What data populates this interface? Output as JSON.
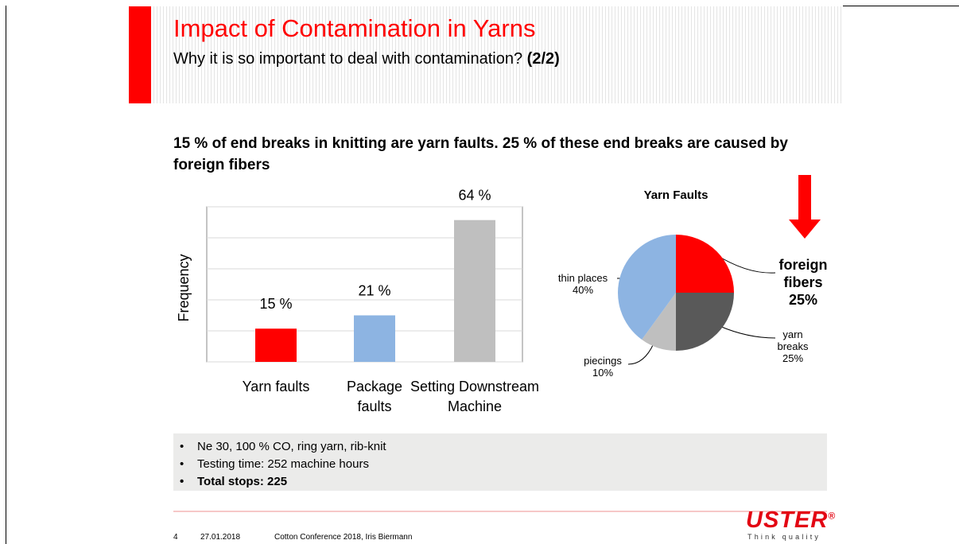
{
  "header": {
    "title": "Impact of Contamination in Yarns",
    "subtitle": "Why it is so important to deal with contamination?",
    "subtitle_bold": "(2/2)"
  },
  "headline": "15 % of end breaks in knitting are yarn faults. 25 % of these end breaks are caused by foreign fibers",
  "chart_data": [
    {
      "type": "bar",
      "ylabel": "Frequency",
      "categories": [
        "Yarn faults",
        "Package faults",
        "Setting Downstream Machine"
      ],
      "values": [
        15,
        21,
        64
      ],
      "value_labels": [
        "15 %",
        "21 %",
        "64 %"
      ],
      "colors": [
        "#ff0000",
        "#8db4e2",
        "#bfbfbf"
      ],
      "ylim": [
        0,
        70
      ],
      "yticks": [
        0,
        14,
        28,
        42,
        56,
        70
      ],
      "grid": true
    },
    {
      "type": "pie",
      "title": "Yarn Faults",
      "categories": [
        "foreign fibers",
        "yarn breaks",
        "piecings",
        "thin places"
      ],
      "values": [
        25,
        25,
        10,
        40
      ],
      "value_labels": [
        "25%",
        "25%",
        "10%",
        "40%"
      ],
      "colors": [
        "#ff0000",
        "#595959",
        "#bfbfbf",
        "#8db4e2"
      ]
    }
  ],
  "notes": [
    "Ne 30, 100 % CO, ring yarn, rib-knit",
    "Testing time: 252 machine hours",
    "Total stops: 225"
  ],
  "footer": {
    "page": "4",
    "date": "27.01.2018",
    "event": "Cotton Conference 2018, Iris Biermann",
    "logo": "USTER",
    "logo_mark": "®",
    "tagline": "Think quality"
  }
}
